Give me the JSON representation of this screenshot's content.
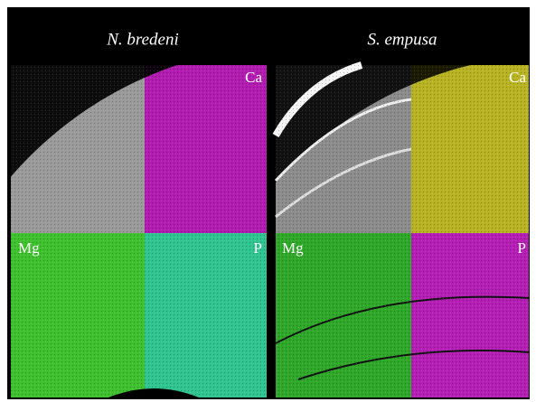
{
  "columns": [
    {
      "title": "N. bredeni",
      "labels": {
        "top": "Ca",
        "bottom_left": "Mg",
        "bottom_right": "P"
      }
    },
    {
      "title": "S. empusa",
      "labels": {
        "top": "Ca",
        "bottom_left": "Mg",
        "bottom_right": "P"
      }
    }
  ]
}
